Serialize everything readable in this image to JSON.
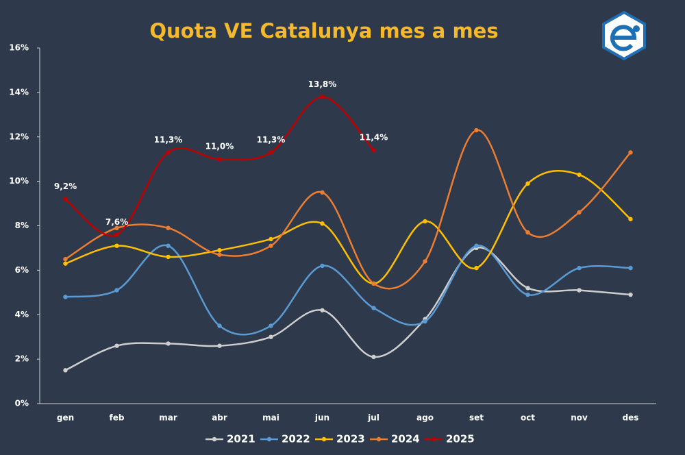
{
  "chart_data": {
    "type": "line",
    "title": "Quota VE Catalunya mes a mes",
    "categories": [
      "gen",
      "feb",
      "mar",
      "abr",
      "mai",
      "jun",
      "jul",
      "ago",
      "set",
      "oct",
      "nov",
      "des"
    ],
    "series": [
      {
        "name": "2021",
        "color": "#cfcfcf",
        "values": [
          1.5,
          2.6,
          2.7,
          2.6,
          3.0,
          4.2,
          2.1,
          3.8,
          7.0,
          5.2,
          5.1,
          4.9
        ]
      },
      {
        "name": "2022",
        "color": "#5b9bd5",
        "values": [
          4.8,
          5.1,
          7.1,
          3.5,
          3.5,
          6.2,
          4.3,
          3.7,
          7.1,
          4.9,
          6.1,
          6.1
        ]
      },
      {
        "name": "2023",
        "color": "#ffc000",
        "values": [
          6.3,
          7.1,
          6.6,
          6.9,
          7.4,
          8.1,
          5.4,
          8.2,
          6.1,
          9.9,
          10.3,
          8.3
        ]
      },
      {
        "name": "2024",
        "color": "#ed7d31",
        "values": [
          6.5,
          7.9,
          7.9,
          6.7,
          7.1,
          9.5,
          5.4,
          6.4,
          12.3,
          7.7,
          8.6,
          11.3
        ]
      },
      {
        "name": "2025",
        "color": "#c00000",
        "values": [
          9.2,
          7.6,
          11.3,
          11.0,
          11.3,
          13.8,
          11.4,
          null,
          null,
          null,
          null,
          null
        ],
        "value_labels": [
          "9,2%",
          "7,6%",
          "11,3%",
          "11,0%",
          "11,3%",
          "13,8%",
          "11,4%",
          null,
          null,
          null,
          null,
          null
        ]
      }
    ],
    "ylim": [
      0,
      16
    ],
    "yticks": [
      {
        "value": 0,
        "label": "0%"
      },
      {
        "value": 2,
        "label": "2%"
      },
      {
        "value": 4,
        "label": "4%"
      },
      {
        "value": 6,
        "label": "6%"
      },
      {
        "value": 8,
        "label": "8%"
      },
      {
        "value": 10,
        "label": "10%"
      },
      {
        "value": 12,
        "label": "12%"
      },
      {
        "value": 14,
        "label": "14%"
      },
      {
        "value": 16,
        "label": "16%"
      }
    ],
    "grid": false,
    "smooth": true,
    "legend": "bottom"
  }
}
